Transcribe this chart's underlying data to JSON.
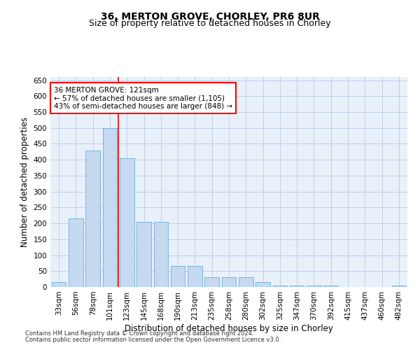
{
  "title": "36, MERTON GROVE, CHORLEY, PR6 8UR",
  "subtitle": "Size of property relative to detached houses in Chorley",
  "xlabel": "Distribution of detached houses by size in Chorley",
  "ylabel": "Number of detached properties",
  "bar_labels": [
    "33sqm",
    "56sqm",
    "78sqm",
    "101sqm",
    "123sqm",
    "145sqm",
    "168sqm",
    "190sqm",
    "213sqm",
    "235sqm",
    "258sqm",
    "280sqm",
    "302sqm",
    "325sqm",
    "347sqm",
    "370sqm",
    "392sqm",
    "415sqm",
    "437sqm",
    "460sqm",
    "482sqm"
  ],
  "bar_values": [
    15,
    215,
    430,
    500,
    405,
    205,
    205,
    65,
    65,
    30,
    30,
    30,
    15,
    5,
    5,
    5,
    5,
    0,
    0,
    0,
    5
  ],
  "bar_color": "#c5d9f0",
  "bar_edge_color": "#6baed6",
  "red_line_x": 3.5,
  "annotation_text": "36 MERTON GROVE: 121sqm\n← 57% of detached houses are smaller (1,105)\n43% of semi-detached houses are larger (848) →",
  "annotation_box_color": "white",
  "annotation_box_edge": "red",
  "ylim": [
    0,
    660
  ],
  "yticks": [
    0,
    50,
    100,
    150,
    200,
    250,
    300,
    350,
    400,
    450,
    500,
    550,
    600,
    650
  ],
  "background_color": "#e8f0fa",
  "grid_color": "#c0cfe8",
  "footer1": "Contains HM Land Registry data © Crown copyright and database right 2024.",
  "footer2": "Contains public sector information licensed under the Open Government Licence v3.0.",
  "title_fontsize": 10,
  "subtitle_fontsize": 9,
  "axis_label_fontsize": 8.5,
  "tick_fontsize": 7.5,
  "annotation_fontsize": 7.5,
  "footer_fontsize": 6
}
